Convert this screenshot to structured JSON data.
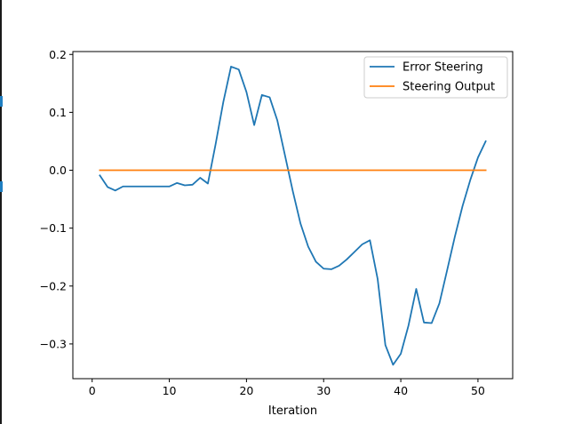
{
  "chart_data": {
    "type": "line",
    "title": "",
    "xlabel": "Iteration",
    "ylabel": "",
    "xlim": [
      -2.5,
      54.5
    ],
    "ylim": [
      -0.36,
      0.205
    ],
    "xticks": [
      0,
      10,
      20,
      30,
      40,
      50
    ],
    "yticks": [
      -0.3,
      -0.2,
      -0.1,
      0.0,
      0.1,
      0.2
    ],
    "xtick_labels": [
      "0",
      "10",
      "20",
      "30",
      "40",
      "50"
    ],
    "ytick_labels": [
      "−0.3",
      "−0.2",
      "−0.1",
      "0.0",
      "0.1",
      "0.2"
    ],
    "grid": false,
    "legend_position": "top-right",
    "series": [
      {
        "name": "Error Steering",
        "color": "#1f77b4",
        "x": [
          1,
          2,
          3,
          4,
          5,
          6,
          7,
          8,
          9,
          10,
          11,
          12,
          13,
          14,
          15,
          16,
          17,
          18,
          19,
          20,
          21,
          22,
          23,
          24,
          25,
          26,
          27,
          28,
          29,
          30,
          31,
          32,
          33,
          34,
          35,
          36,
          37,
          38,
          39,
          40,
          41,
          42,
          43,
          44,
          45,
          46,
          47,
          48,
          49,
          50,
          51
        ],
        "y": [
          -0.009,
          -0.029,
          -0.035,
          -0.028,
          -0.028,
          -0.028,
          -0.028,
          -0.028,
          -0.028,
          -0.028,
          -0.022,
          -0.026,
          -0.025,
          -0.013,
          -0.023,
          0.045,
          0.118,
          0.179,
          0.174,
          0.135,
          0.078,
          0.13,
          0.126,
          0.086,
          0.025,
          -0.036,
          -0.092,
          -0.132,
          -0.158,
          -0.17,
          -0.171,
          -0.165,
          -0.154,
          -0.141,
          -0.128,
          -0.121,
          -0.188,
          -0.302,
          -0.336,
          -0.317,
          -0.268,
          -0.205,
          -0.263,
          -0.264,
          -0.23,
          -0.173,
          -0.115,
          -0.062,
          -0.017,
          0.022,
          0.05
        ]
      },
      {
        "name": "Steering Output",
        "color": "#ff7f0e",
        "x": [
          1,
          2,
          3,
          4,
          5,
          6,
          7,
          8,
          9,
          10,
          11,
          12,
          13,
          14,
          15,
          16,
          17,
          18,
          19,
          20,
          21,
          22,
          23,
          24,
          25,
          26,
          27,
          28,
          29,
          30,
          31,
          32,
          33,
          34,
          35,
          36,
          37,
          38,
          39,
          40,
          41,
          42,
          43,
          44,
          45,
          46,
          47,
          48,
          49,
          50,
          51
        ],
        "y": [
          0,
          0,
          0,
          0,
          0,
          0,
          0,
          0,
          0,
          0,
          0,
          0,
          0,
          0,
          0,
          0,
          0,
          0,
          0,
          0,
          0,
          0,
          0,
          0,
          0,
          0,
          0,
          0,
          0,
          0,
          0,
          0,
          0,
          0,
          0,
          0,
          0,
          0,
          0,
          0,
          0,
          0,
          0,
          0,
          0,
          0,
          0,
          0,
          0,
          0,
          0
        ]
      }
    ]
  }
}
